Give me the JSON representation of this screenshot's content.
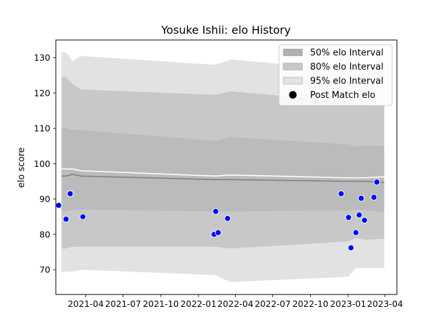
{
  "chart_data": {
    "type": "area",
    "title": "Yosuke Ishii: elo History",
    "xlabel": "",
    "ylabel": "elo score",
    "ylim": [
      63,
      135
    ],
    "xlim": [
      "2021-01-18",
      "2023-04-30"
    ],
    "grid": false,
    "legend_position": "top-right",
    "x_ticks": [
      "2021-04",
      "2021-07",
      "2021-10",
      "2022-01",
      "2022-04",
      "2022-07",
      "2022-10",
      "2023-01",
      "2023-04"
    ],
    "y_ticks": [
      70,
      80,
      90,
      100,
      110,
      120,
      130
    ],
    "colors": {
      "band_50": "#b0b0b0",
      "band_80": "#c8c8c8",
      "band_95": "#e2e2e2",
      "median_line": "#808080",
      "mean_line": "#ffffff",
      "points": "#0000ff",
      "point_edge": "#ffffff"
    },
    "legend": [
      {
        "label": "50% elo Interval",
        "kind": "band_50"
      },
      {
        "label": "80% elo Interval",
        "kind": "band_80"
      },
      {
        "label": "95% elo Interval",
        "kind": "band_95"
      },
      {
        "label": "Post Match elo",
        "kind": "point"
      }
    ],
    "bands": {
      "x": [
        "2021-02-01",
        "2021-02-12",
        "2021-02-28",
        "2021-03-20",
        "2022-02-10",
        "2022-03-20",
        "2023-01-01",
        "2023-01-20",
        "2023-02-10",
        "2023-03-30"
      ],
      "p95_upper": [
        131.5,
        131.5,
        129,
        130.5,
        128,
        129.5,
        126.5,
        126.5,
        126.5,
        126.5
      ],
      "p80_upper": [
        124.5,
        124.5,
        122.5,
        121,
        119.5,
        120.5,
        117.5,
        117,
        117,
        116.5
      ],
      "p50_upper": [
        110,
        110,
        109.5,
        109.5,
        106.5,
        107.5,
        105.5,
        104.8,
        105.2,
        105
      ],
      "p50_lower": [
        86.5,
        86.5,
        87,
        87,
        86.5,
        86.5,
        86.8,
        87,
        86.8,
        86.3
      ],
      "p80_lower": [
        76,
        76,
        76.5,
        76.5,
        76.5,
        76,
        78,
        79,
        78.5,
        78.7
      ],
      "p95_lower": [
        69.5,
        69.5,
        69.5,
        70,
        68.5,
        66.5,
        68,
        70.5,
        70.5,
        70.5
      ],
      "median": [
        96.5,
        96.5,
        97,
        96.5,
        95.5,
        95.5,
        95,
        95,
        95,
        94.7
      ],
      "mean": [
        98.5,
        98.5,
        98.5,
        98,
        96.5,
        96.8,
        96,
        96,
        96,
        96.3
      ]
    },
    "series": [
      {
        "name": "Post Match elo",
        "points": [
          {
            "x": "2021-01-25",
            "y": 88.2
          },
          {
            "x": "2021-02-12",
            "y": 84.3
          },
          {
            "x": "2021-02-22",
            "y": 91.5
          },
          {
            "x": "2021-03-25",
            "y": 85
          },
          {
            "x": "2022-02-08",
            "y": 80
          },
          {
            "x": "2022-02-12",
            "y": 86.5
          },
          {
            "x": "2022-02-18",
            "y": 80.5
          },
          {
            "x": "2022-03-13",
            "y": 84.5
          },
          {
            "x": "2022-12-15",
            "y": 91.5
          },
          {
            "x": "2023-01-02",
            "y": 84.8
          },
          {
            "x": "2023-01-08",
            "y": 76.2
          },
          {
            "x": "2023-01-20",
            "y": 80.5
          },
          {
            "x": "2023-01-28",
            "y": 85.5
          },
          {
            "x": "2023-02-02",
            "y": 90.2
          },
          {
            "x": "2023-02-10",
            "y": 84
          },
          {
            "x": "2023-03-05",
            "y": 90.5
          },
          {
            "x": "2023-03-12",
            "y": 94.8
          }
        ]
      }
    ]
  }
}
